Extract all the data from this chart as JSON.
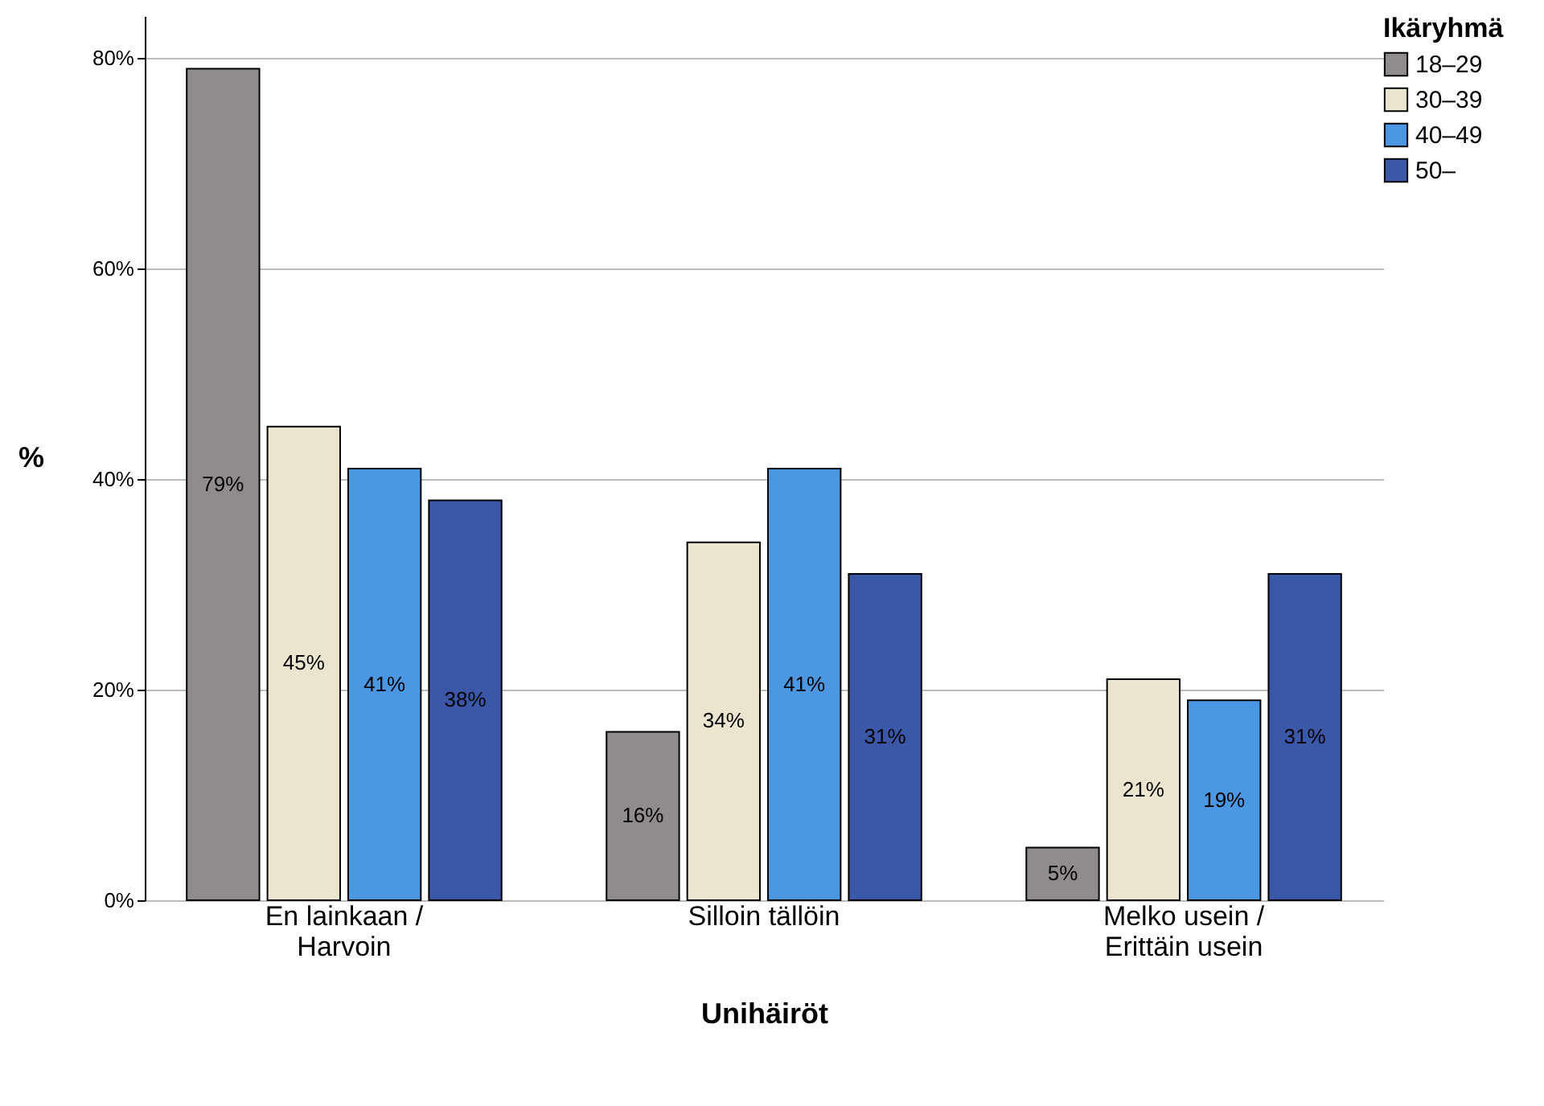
{
  "chart_data": {
    "type": "bar",
    "xlabel": "Unihäiröt",
    "ylabel": "%",
    "legend_title": "Ikäryhmä",
    "categories": [
      "En lainkaan / Harvoin",
      "Silloin tällöin",
      "Melko usein / Erittäin usein"
    ],
    "series": [
      {
        "name": "18–29",
        "color": "#908c8c",
        "values": [
          79,
          16,
          5
        ]
      },
      {
        "name": "30–39",
        "color": "#ebe5d0",
        "values": [
          45,
          34,
          21
        ]
      },
      {
        "name": "40–49",
        "color": "#4b97e2",
        "values": [
          41,
          41,
          19
        ]
      },
      {
        "name": "50–",
        "color": "#3b58a8",
        "values": [
          38,
          31,
          31
        ]
      }
    ],
    "ylim": [
      0,
      84
    ],
    "yticks": [
      {
        "value": 0,
        "label": "0%"
      },
      {
        "value": 20,
        "label": "20%"
      },
      {
        "value": 40,
        "label": "40%"
      },
      {
        "value": 60,
        "label": "60%"
      },
      {
        "value": 80,
        "label": "80%"
      }
    ],
    "grid": "y",
    "legend": "top right",
    "value_labels": [
      [
        "79%",
        "16%",
        "5%"
      ],
      [
        "45%",
        "34%",
        "21%"
      ],
      [
        "41%",
        "41%",
        "19%"
      ],
      [
        "38%",
        "31%",
        "31%"
      ]
    ]
  }
}
